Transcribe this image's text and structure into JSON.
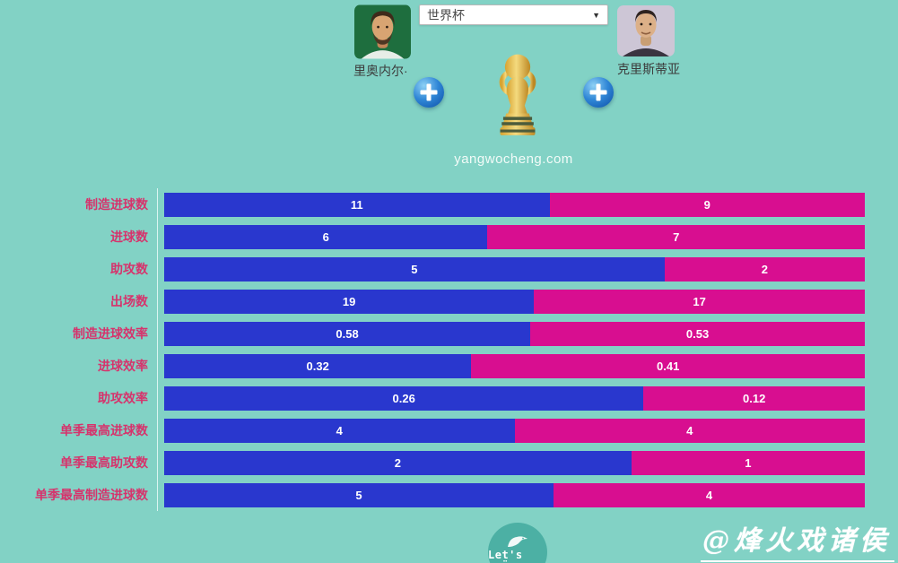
{
  "header": {
    "competition_select": {
      "value": "世界杯",
      "caret": "▼"
    },
    "player_left": {
      "name": "里奥内尔·"
    },
    "player_right": {
      "name": "克里斯蒂亚"
    },
    "add_button": "+",
    "site_watermark": "yangwocheng.com"
  },
  "chart_data": {
    "type": "bar",
    "subtype": "horizontal-stacked-comparison",
    "categories": [
      "制造进球数",
      "进球数",
      "助攻数",
      "出场数",
      "制造进球效率",
      "进球效率",
      "助攻效率",
      "单季最高进球数",
      "单季最高助攻数",
      "单季最高制造进球数"
    ],
    "series": [
      {
        "name": "里奥内尔·",
        "color": "#2937ce",
        "values": [
          11,
          6,
          5,
          19,
          0.58,
          0.32,
          0.26,
          4,
          2,
          5
        ]
      },
      {
        "name": "克里斯蒂亚",
        "color": "#d80e90",
        "values": [
          9,
          7,
          2,
          17,
          0.53,
          0.41,
          0.12,
          4,
          1,
          4
        ]
      }
    ],
    "value_labels_shown": true,
    "legend_position": "none",
    "grid": false
  },
  "footer": {
    "logo_text": "Let's FTÜ",
    "signature_watermark": "@烽火戏诸侯"
  },
  "colors": {
    "background": "#82d2c5",
    "bar_left": "#2937ce",
    "bar_right": "#d80e90",
    "category_label": "#d6336c",
    "logo_circle": "#4cb0a4"
  }
}
